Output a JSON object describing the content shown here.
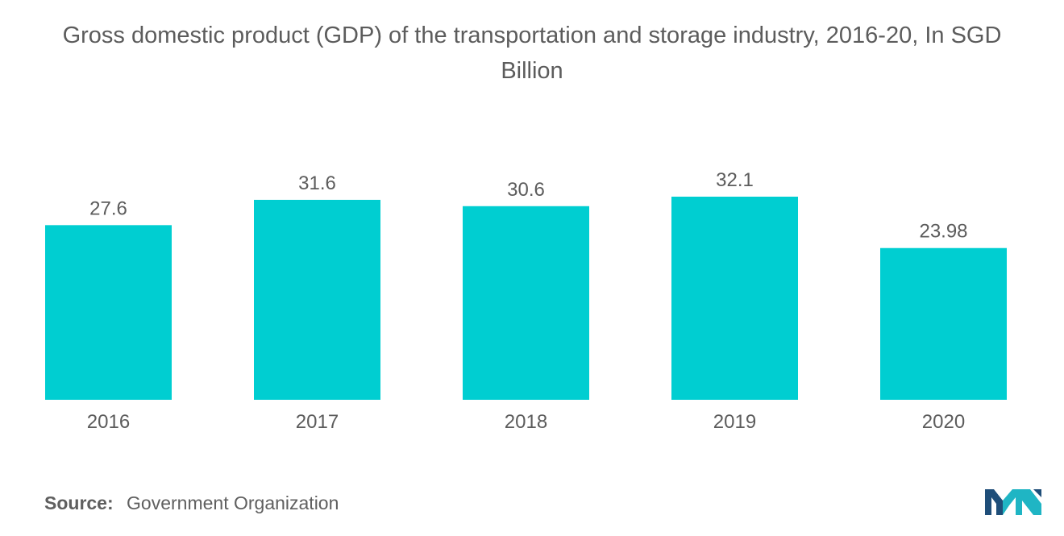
{
  "chart_data": {
    "type": "bar",
    "title_lines": [
      "Gross domestic product (GDP) of the transportation and storage industry, 2016-20, In SGD",
      "Billion"
    ],
    "categories": [
      "2016",
      "2017",
      "2018",
      "2019",
      "2020"
    ],
    "values": [
      27.6,
      31.6,
      30.6,
      32.1,
      23.98
    ],
    "value_labels": [
      "27.6",
      "31.6",
      "30.6",
      "32.1",
      "23.98"
    ],
    "xlabel": "",
    "ylabel": "",
    "ylim": [
      0,
      32.1
    ],
    "grid": false,
    "legend": "none",
    "bar_color": "#00CED1"
  },
  "source": {
    "label": "Source:",
    "text": "Government Organization"
  },
  "colors": {
    "text": "#5c5c5c",
    "logo_dark": "#1f4e79",
    "logo_teal": "#1fb5c4"
  }
}
